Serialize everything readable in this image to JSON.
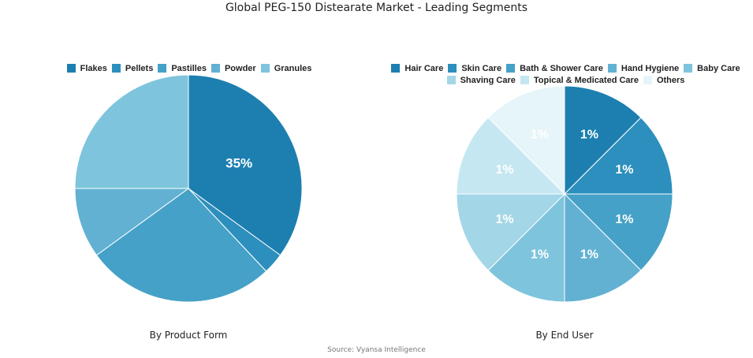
{
  "title": "Global PEG-150 Distearate Market - Leading Segments",
  "source": "Source: Vyansa Intelligence",
  "chart_data": [
    {
      "type": "pie",
      "caption": "By Product Form",
      "legend_position": "top",
      "slices": [
        {
          "label": "Flakes",
          "value": 35,
          "color": "#1c7fb0",
          "data_label": "35%"
        },
        {
          "label": "Pellets",
          "value": 3,
          "color": "#2d8fbd",
          "data_label": ""
        },
        {
          "label": "Pastilles",
          "value": 27,
          "color": "#45a1c7",
          "data_label": ""
        },
        {
          "label": "Powder",
          "value": 10,
          "color": "#62b1d3",
          "data_label": ""
        },
        {
          "label": "Granules",
          "value": 25,
          "color": "#7fc4dd",
          "data_label": ""
        }
      ]
    },
    {
      "type": "pie",
      "caption": "By End User",
      "legend_position": "top",
      "slices": [
        {
          "label": "Hair Care",
          "value": 1,
          "color": "#1c7fb0",
          "data_label": "1%"
        },
        {
          "label": "Skin Care",
          "value": 1,
          "color": "#2d8fbd",
          "data_label": "1%"
        },
        {
          "label": "Bath & Shower Care",
          "value": 1,
          "color": "#45a1c7",
          "data_label": "1%"
        },
        {
          "label": "Hand Hygiene",
          "value": 1,
          "color": "#62b1d3",
          "data_label": "1%"
        },
        {
          "label": "Baby Care",
          "value": 1,
          "color": "#7fc4dd",
          "data_label": "1%"
        },
        {
          "label": "Shaving Care",
          "value": 1,
          "color": "#a3d6e7",
          "data_label": "1%"
        },
        {
          "label": "Topical & Medicated Care",
          "value": 1,
          "color": "#c5e7f1",
          "data_label": "1%"
        },
        {
          "label": "Others",
          "value": 1,
          "color": "#e5f5fa",
          "data_label": "1%"
        }
      ]
    }
  ]
}
